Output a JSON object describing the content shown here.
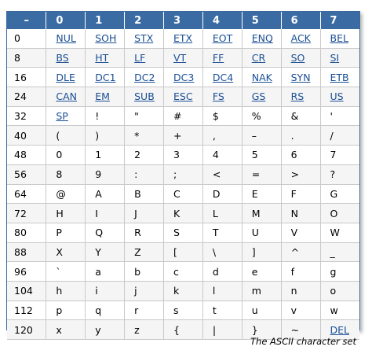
{
  "table": {
    "corner": "–",
    "headers": [
      "0",
      "1",
      "2",
      "3",
      "4",
      "5",
      "6",
      "7"
    ],
    "rows": [
      {
        "label": "0",
        "cells": [
          "NUL",
          "SOH",
          "STX",
          "ETX",
          "EOT",
          "ENQ",
          "ACK",
          "BEL"
        ],
        "links": [
          1,
          1,
          1,
          1,
          1,
          1,
          1,
          1
        ]
      },
      {
        "label": "8",
        "cells": [
          "BS",
          "HT",
          "LF",
          "VT",
          "FF",
          "CR",
          "SO",
          "SI"
        ],
        "links": [
          1,
          1,
          1,
          1,
          1,
          1,
          1,
          1
        ]
      },
      {
        "label": "16",
        "cells": [
          "DLE",
          "DC1",
          "DC2",
          "DC3",
          "DC4",
          "NAK",
          "SYN",
          "ETB"
        ],
        "links": [
          1,
          1,
          1,
          1,
          1,
          1,
          1,
          1
        ]
      },
      {
        "label": "24",
        "cells": [
          "CAN",
          "EM",
          "SUB",
          "ESC",
          "FS",
          "GS",
          "RS",
          "US"
        ],
        "links": [
          1,
          1,
          1,
          1,
          1,
          1,
          1,
          1
        ]
      },
      {
        "label": "32",
        "cells": [
          "SP",
          "!",
          "\"",
          "#",
          "$",
          "%",
          "&",
          "'"
        ],
        "links": [
          1,
          0,
          0,
          0,
          0,
          0,
          0,
          0
        ]
      },
      {
        "label": "40",
        "cells": [
          "(",
          ")",
          "*",
          "+",
          ",",
          "–",
          ".",
          "/"
        ],
        "links": [
          0,
          0,
          0,
          0,
          0,
          0,
          0,
          0
        ]
      },
      {
        "label": "48",
        "cells": [
          "0",
          "1",
          "2",
          "3",
          "4",
          "5",
          "6",
          "7"
        ],
        "links": [
          0,
          0,
          0,
          0,
          0,
          0,
          0,
          0
        ]
      },
      {
        "label": "56",
        "cells": [
          "8",
          "9",
          ":",
          ";",
          "<",
          "=",
          ">",
          "?"
        ],
        "links": [
          0,
          0,
          0,
          0,
          0,
          0,
          0,
          0
        ]
      },
      {
        "label": "64",
        "cells": [
          "@",
          "A",
          "B",
          "C",
          "D",
          "E",
          "F",
          "G"
        ],
        "links": [
          0,
          0,
          0,
          0,
          0,
          0,
          0,
          0
        ]
      },
      {
        "label": "72",
        "cells": [
          "H",
          "I",
          "J",
          "K",
          "L",
          "M",
          "N",
          "O"
        ],
        "links": [
          0,
          0,
          0,
          0,
          0,
          0,
          0,
          0
        ]
      },
      {
        "label": "80",
        "cells": [
          "P",
          "Q",
          "R",
          "S",
          "T",
          "U",
          "V",
          "W"
        ],
        "links": [
          0,
          0,
          0,
          0,
          0,
          0,
          0,
          0
        ]
      },
      {
        "label": "88",
        "cells": [
          "X",
          "Y",
          "Z",
          "[",
          "\\",
          "]",
          "^",
          "_"
        ],
        "links": [
          0,
          0,
          0,
          0,
          0,
          0,
          0,
          0
        ]
      },
      {
        "label": "96",
        "cells": [
          "`",
          "a",
          "b",
          "c",
          "d",
          "e",
          "f",
          "g"
        ],
        "links": [
          0,
          0,
          0,
          0,
          0,
          0,
          0,
          0
        ]
      },
      {
        "label": "104",
        "cells": [
          "h",
          "i",
          "j",
          "k",
          "l",
          "m",
          "n",
          "o"
        ],
        "links": [
          0,
          0,
          0,
          0,
          0,
          0,
          0,
          0
        ]
      },
      {
        "label": "112",
        "cells": [
          "p",
          "q",
          "r",
          "s",
          "t",
          "u",
          "v",
          "w"
        ],
        "links": [
          0,
          0,
          0,
          0,
          0,
          0,
          0,
          0
        ]
      },
      {
        "label": "120",
        "cells": [
          "x",
          "y",
          "z",
          "{",
          "|",
          "}",
          "~",
          "DEL"
        ],
        "links": [
          0,
          0,
          0,
          0,
          0,
          0,
          0,
          1
        ]
      }
    ]
  },
  "caption": "The ASCII character set",
  "colors": {
    "header_bg": "#3b6ba3",
    "link": "#1a4f94",
    "border": "#3a68a0"
  }
}
